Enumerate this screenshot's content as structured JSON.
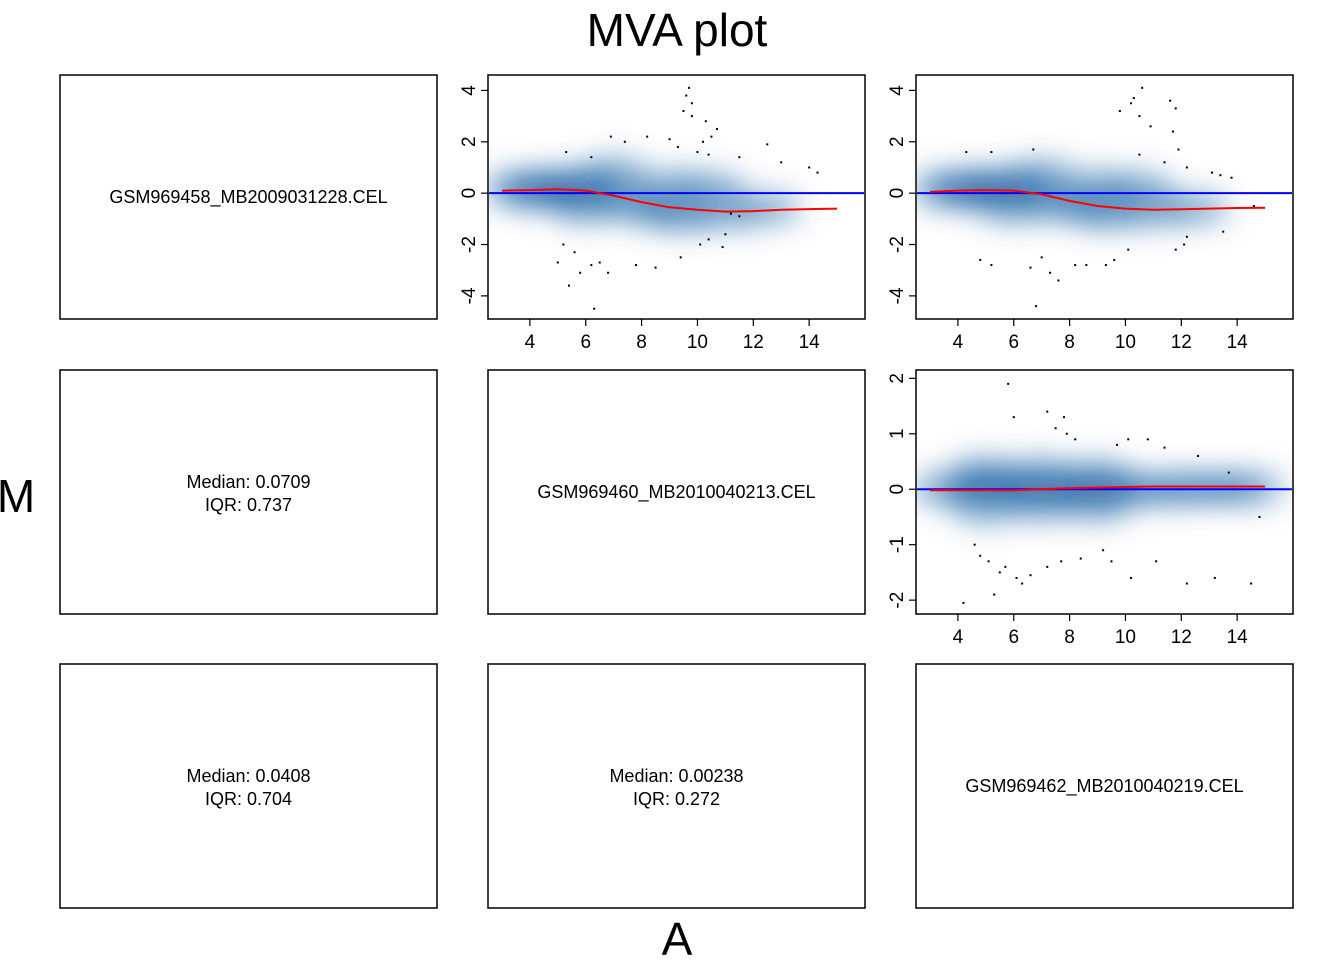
{
  "title": "MVA plot",
  "xlabel": "A",
  "ylabel": "M",
  "colors": {
    "density": "#08519c",
    "baseline": "#0000ff",
    "loess": "#ff0000",
    "points": "#000000"
  },
  "samples": [
    "GSM969458_MB2009031228.CEL",
    "GSM969460_MB2010040213.CEL",
    "GSM969462_MB2010040219.CEL"
  ],
  "stats": [
    {
      "row": 1,
      "col": 0,
      "median": "Median: 0.0709",
      "iqr": "IQR: 0.737"
    },
    {
      "row": 2,
      "col": 0,
      "median": "Median: 0.0408",
      "iqr": "IQR: 0.704"
    },
    {
      "row": 2,
      "col": 1,
      "median": "Median: 0.00238",
      "iqr": "IQR: 0.272"
    }
  ],
  "chart_data": [
    {
      "type": "scatter",
      "row": 0,
      "col": 1,
      "xlim": [
        2.5,
        16
      ],
      "ylim": [
        -4.9,
        4.6
      ],
      "xticks": [
        4,
        6,
        8,
        10,
        12,
        14
      ],
      "yticks": [
        -4,
        -2,
        0,
        2,
        4
      ],
      "baseline": 0,
      "density": [
        [
          3.5,
          0.2
        ],
        [
          4.5,
          0.3
        ],
        [
          5.5,
          0.35
        ],
        [
          6.3,
          0.2
        ],
        [
          5,
          0
        ],
        [
          4,
          0
        ],
        [
          7.5,
          -0.4
        ],
        [
          8.5,
          -0.7
        ],
        [
          9.5,
          -0.9
        ],
        [
          11,
          -0.8
        ],
        [
          12.5,
          -0.6
        ],
        [
          7,
          0.8
        ],
        [
          6,
          -0.6
        ],
        [
          9,
          0.3
        ],
        [
          10.5,
          0.2
        ]
      ],
      "loess": [
        [
          3,
          0.1
        ],
        [
          4,
          0.12
        ],
        [
          5,
          0.15
        ],
        [
          6,
          0.1
        ],
        [
          7,
          -0.1
        ],
        [
          8,
          -0.35
        ],
        [
          9,
          -0.55
        ],
        [
          10,
          -0.65
        ],
        [
          11,
          -0.72
        ],
        [
          12,
          -0.7
        ],
        [
          13,
          -0.65
        ],
        [
          14,
          -0.62
        ],
        [
          15,
          -0.6
        ]
      ],
      "points": [
        [
          9.7,
          4.1
        ],
        [
          9.6,
          3.8
        ],
        [
          9.8,
          3.5
        ],
        [
          9.5,
          3.2
        ],
        [
          9.8,
          3
        ],
        [
          10.3,
          2.8
        ],
        [
          10.7,
          2.5
        ],
        [
          10.5,
          2.2
        ],
        [
          10.2,
          2
        ],
        [
          8.2,
          2.2
        ],
        [
          9,
          2.1
        ],
        [
          9.3,
          1.8
        ],
        [
          10,
          1.6
        ],
        [
          10.4,
          1.5
        ],
        [
          11.5,
          1.4
        ],
        [
          12.5,
          1.9
        ],
        [
          13,
          1.2
        ],
        [
          14,
          1
        ],
        [
          14.3,
          0.8
        ],
        [
          6.2,
          1.4
        ],
        [
          5.3,
          1.6
        ],
        [
          6.9,
          2.2
        ],
        [
          7.4,
          2
        ],
        [
          5.2,
          -2
        ],
        [
          5.6,
          -2.3
        ],
        [
          6.2,
          -2.8
        ],
        [
          5.8,
          -3.1
        ],
        [
          6.5,
          -2.7
        ],
        [
          5,
          -2.7
        ],
        [
          6.8,
          -3.1
        ],
        [
          7.8,
          -2.8
        ],
        [
          8.5,
          -2.9
        ],
        [
          9.4,
          -2.5
        ],
        [
          10.1,
          -2
        ],
        [
          10.4,
          -1.8
        ],
        [
          11,
          -1.6
        ],
        [
          10.9,
          -2.1
        ],
        [
          5.4,
          -3.6
        ],
        [
          6.3,
          -4.5
        ],
        [
          11.2,
          -0.8
        ],
        [
          11.5,
          -0.9
        ]
      ]
    },
    {
      "type": "scatter",
      "row": 0,
      "col": 2,
      "xlim": [
        2.5,
        16
      ],
      "ylim": [
        -4.9,
        4.6
      ],
      "xticks": [
        4,
        6,
        8,
        10,
        12,
        14
      ],
      "yticks": [
        -4,
        -2,
        0,
        2,
        4
      ],
      "baseline": 0,
      "density": [
        [
          3.5,
          0.2
        ],
        [
          4.5,
          0.3
        ],
        [
          5.5,
          0.35
        ],
        [
          6.3,
          0.2
        ],
        [
          5,
          0
        ],
        [
          4,
          0
        ],
        [
          7.5,
          -0.4
        ],
        [
          8.5,
          -0.6
        ],
        [
          9.5,
          -0.8
        ],
        [
          11,
          -0.7
        ],
        [
          12.5,
          -0.6
        ],
        [
          7,
          0.7
        ],
        [
          6,
          -0.6
        ],
        [
          9,
          0.3
        ],
        [
          10.5,
          0.2
        ]
      ],
      "loess": [
        [
          3,
          0.05
        ],
        [
          4,
          0.1
        ],
        [
          5,
          0.12
        ],
        [
          6,
          0.1
        ],
        [
          7,
          -0.05
        ],
        [
          8,
          -0.3
        ],
        [
          9,
          -0.5
        ],
        [
          10,
          -0.6
        ],
        [
          11,
          -0.65
        ],
        [
          12,
          -0.63
        ],
        [
          13,
          -0.6
        ],
        [
          14,
          -0.58
        ],
        [
          15,
          -0.57
        ]
      ],
      "points": [
        [
          10.6,
          4.1
        ],
        [
          10.3,
          3.7
        ],
        [
          10.2,
          3.5
        ],
        [
          9.8,
          3.2
        ],
        [
          10.5,
          3
        ],
        [
          11.6,
          3.6
        ],
        [
          11.8,
          3.3
        ],
        [
          10.9,
          2.6
        ],
        [
          11.7,
          2.4
        ],
        [
          11.9,
          1.7
        ],
        [
          10.5,
          1.5
        ],
        [
          11.4,
          1.2
        ],
        [
          12.2,
          1
        ],
        [
          13.1,
          0.8
        ],
        [
          13.4,
          0.7
        ],
        [
          13.8,
          0.6
        ],
        [
          6.7,
          1.7
        ],
        [
          5.2,
          1.6
        ],
        [
          4.3,
          1.6
        ],
        [
          5.2,
          -2.8
        ],
        [
          4.8,
          -2.6
        ],
        [
          6.6,
          -2.9
        ],
        [
          7,
          -2.5
        ],
        [
          7.3,
          -3.1
        ],
        [
          8.2,
          -2.8
        ],
        [
          8.6,
          -2.8
        ],
        [
          9.3,
          -2.8
        ],
        [
          9.6,
          -2.6
        ],
        [
          10.1,
          -2.2
        ],
        [
          11.8,
          -2.2
        ],
        [
          12.1,
          -2
        ],
        [
          12.2,
          -1.7
        ],
        [
          7.6,
          -3.4
        ],
        [
          6.8,
          -4.4
        ],
        [
          13.5,
          -1.5
        ],
        [
          14.6,
          -0.5
        ]
      ]
    },
    {
      "type": "scatter",
      "row": 1,
      "col": 2,
      "xlim": [
        2.5,
        16
      ],
      "ylim": [
        -2.25,
        2.15
      ],
      "xticks": [
        4,
        6,
        8,
        10,
        12,
        14
      ],
      "yticks": [
        -2,
        -1,
        0,
        1,
        2
      ],
      "baseline": 0,
      "density": [
        [
          3.5,
          0
        ],
        [
          4.5,
          0.05
        ],
        [
          5.5,
          0.05
        ],
        [
          6.5,
          0
        ],
        [
          7.5,
          0
        ],
        [
          8.5,
          0
        ],
        [
          9.5,
          0
        ],
        [
          10.5,
          0
        ],
        [
          11.5,
          0
        ],
        [
          12.5,
          0.02
        ],
        [
          13.5,
          0.02
        ],
        [
          14.5,
          0.02
        ],
        [
          5,
          0.3
        ],
        [
          5,
          -0.35
        ],
        [
          7,
          0.3
        ],
        [
          7,
          -0.3
        ],
        [
          9,
          0.25
        ],
        [
          9,
          -0.3
        ]
      ],
      "loess": [
        [
          3,
          -0.02
        ],
        [
          4,
          -0.02
        ],
        [
          5,
          -0.02
        ],
        [
          6,
          -0.02
        ],
        [
          7,
          0
        ],
        [
          8,
          0.02
        ],
        [
          9,
          0.03
        ],
        [
          10,
          0.04
        ],
        [
          11,
          0.05
        ],
        [
          12,
          0.05
        ],
        [
          13,
          0.05
        ],
        [
          14,
          0.05
        ],
        [
          15,
          0.05
        ]
      ],
      "points": [
        [
          5.8,
          1.9
        ],
        [
          6,
          1.3
        ],
        [
          7.2,
          1.4
        ],
        [
          7.8,
          1.3
        ],
        [
          7.5,
          1.1
        ],
        [
          7.9,
          1
        ],
        [
          8.2,
          0.9
        ],
        [
          9.7,
          0.8
        ],
        [
          10.1,
          0.9
        ],
        [
          10.8,
          0.9
        ],
        [
          11.4,
          0.75
        ],
        [
          12.6,
          0.6
        ],
        [
          13.7,
          0.3
        ],
        [
          4.6,
          -1
        ],
        [
          4.8,
          -1.2
        ],
        [
          5.1,
          -1.3
        ],
        [
          5.5,
          -1.5
        ],
        [
          5.7,
          -1.4
        ],
        [
          6.1,
          -1.6
        ],
        [
          6.3,
          -1.7
        ],
        [
          6.6,
          -1.55
        ],
        [
          7.2,
          -1.4
        ],
        [
          7.7,
          -1.3
        ],
        [
          8.4,
          -1.25
        ],
        [
          9.2,
          -1.1
        ],
        [
          9.5,
          -1.3
        ],
        [
          10.2,
          -1.6
        ],
        [
          11.1,
          -1.3
        ],
        [
          12.2,
          -1.7
        ],
        [
          13.2,
          -1.6
        ],
        [
          14.5,
          -1.7
        ],
        [
          4.2,
          -2.05
        ],
        [
          5.3,
          -1.9
        ],
        [
          14.8,
          -0.5
        ]
      ]
    }
  ]
}
